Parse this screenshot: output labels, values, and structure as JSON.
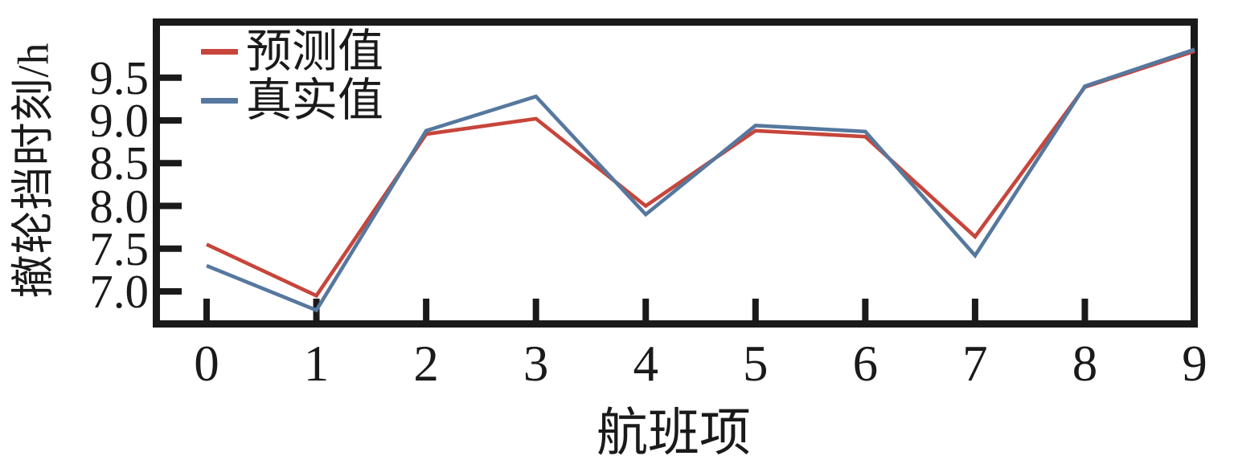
{
  "chart_data": {
    "type": "line",
    "title": "",
    "xlabel": "航班项",
    "ylabel": "撤轮挡时刻/h",
    "x": [
      0,
      1,
      2,
      3,
      4,
      5,
      6,
      7,
      8,
      9
    ],
    "xtick_labels": [
      "0",
      "1",
      "2",
      "3",
      "4",
      "5",
      "6",
      "7",
      "8",
      "9"
    ],
    "yticks": [
      7.0,
      7.5,
      8.0,
      8.5,
      9.0,
      9.5
    ],
    "ytick_labels": [
      "7.0",
      "7.5",
      "8.0",
      "8.5",
      "9.0",
      "9.5"
    ],
    "ylim": [
      6.66,
      10.12
    ],
    "xlim": [
      -0.42,
      9.0
    ],
    "grid": false,
    "legend_position": "upper-left",
    "series": [
      {
        "name": "预测值",
        "color": "#c7453b",
        "values": [
          7.55,
          6.95,
          8.84,
          9.02,
          8.0,
          8.88,
          8.81,
          7.64,
          9.39,
          9.81
        ]
      },
      {
        "name": "真实值",
        "color": "#56789e",
        "values": [
          7.3,
          6.78,
          8.88,
          9.28,
          7.9,
          8.94,
          8.87,
          7.42,
          9.4,
          9.83
        ]
      }
    ]
  },
  "colors": {
    "axis": "#1a1a1a",
    "background": "#ffffff"
  }
}
